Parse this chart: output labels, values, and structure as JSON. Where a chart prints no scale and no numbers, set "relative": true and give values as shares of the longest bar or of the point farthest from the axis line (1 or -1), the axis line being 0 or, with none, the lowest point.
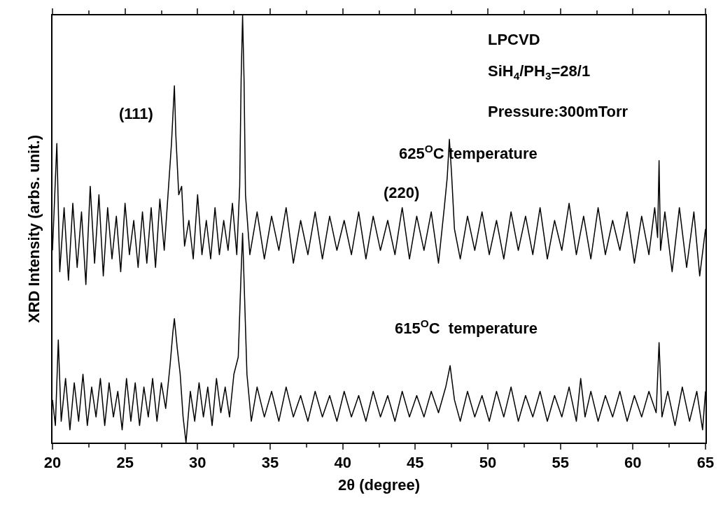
{
  "chart_data": {
    "type": "line",
    "relative": true,
    "xlabel": "2θ (degree)",
    "ylabel": "XRD Intensity (arbs. unit.)",
    "xlim": [
      20,
      65
    ],
    "xticks": [
      20,
      25,
      30,
      35,
      40,
      45,
      50,
      55,
      60,
      65
    ],
    "tick_labels": "x",
    "legend": false,
    "marker": "none",
    "line_style": "solid",
    "annotations": [
      "(111)",
      "(220)",
      "LPCVD",
      "SiH$_{4}$/PH$_{3}$=28/1",
      "Pressure:300mTorr"
    ],
    "series": [
      {
        "name": "625$^{O}$C temperature",
        "color": "#000000",
        "x": [
          20.0,
          20.3,
          20.5,
          20.8,
          21.1,
          21.4,
          21.7,
          22.0,
          22.3,
          22.6,
          22.9,
          23.2,
          23.5,
          23.8,
          24.1,
          24.4,
          24.7,
          25.0,
          25.3,
          25.6,
          25.9,
          26.2,
          26.5,
          26.8,
          27.1,
          27.4,
          27.7,
          28.0,
          28.2,
          28.4,
          28.5,
          28.7,
          28.9,
          29.1,
          29.4,
          29.7,
          30.0,
          30.3,
          30.6,
          30.9,
          31.2,
          31.5,
          31.8,
          32.1,
          32.4,
          32.7,
          32.9,
          33.0,
          33.1,
          33.2,
          33.3,
          33.6,
          34.1,
          34.6,
          35.1,
          35.6,
          36.1,
          36.6,
          37.1,
          37.6,
          38.1,
          38.6,
          39.1,
          39.6,
          40.1,
          40.6,
          41.1,
          41.6,
          42.1,
          42.6,
          43.1,
          43.6,
          44.1,
          44.6,
          45.1,
          45.6,
          46.1,
          46.6,
          47.0,
          47.2,
          47.35,
          47.5,
          47.7,
          48.1,
          48.6,
          49.1,
          49.6,
          50.1,
          50.6,
          51.1,
          51.6,
          52.1,
          52.6,
          53.1,
          53.6,
          54.1,
          54.6,
          55.1,
          55.6,
          56.1,
          56.6,
          57.1,
          57.6,
          58.1,
          58.6,
          59.1,
          59.6,
          60.1,
          60.6,
          61.1,
          61.5,
          61.7,
          61.8,
          61.9,
          62.2,
          62.7,
          63.2,
          63.7,
          64.2,
          64.6,
          65.0
        ],
        "values": [
          0.45,
          0.7,
          0.4,
          0.55,
          0.38,
          0.56,
          0.41,
          0.54,
          0.37,
          0.6,
          0.42,
          0.58,
          0.39,
          0.55,
          0.43,
          0.53,
          0.4,
          0.56,
          0.44,
          0.52,
          0.41,
          0.54,
          0.42,
          0.55,
          0.41,
          0.57,
          0.45,
          0.6,
          0.7,
          0.835,
          0.72,
          0.58,
          0.6,
          0.46,
          0.52,
          0.43,
          0.58,
          0.44,
          0.52,
          0.43,
          0.55,
          0.44,
          0.52,
          0.45,
          0.56,
          0.44,
          0.6,
          0.85,
          1.0,
          0.85,
          0.58,
          0.44,
          0.54,
          0.43,
          0.53,
          0.45,
          0.55,
          0.42,
          0.52,
          0.44,
          0.54,
          0.43,
          0.53,
          0.45,
          0.52,
          0.44,
          0.54,
          0.43,
          0.53,
          0.45,
          0.52,
          0.44,
          0.55,
          0.43,
          0.53,
          0.45,
          0.54,
          0.42,
          0.55,
          0.62,
          0.71,
          0.63,
          0.5,
          0.43,
          0.53,
          0.45,
          0.54,
          0.44,
          0.52,
          0.43,
          0.54,
          0.45,
          0.53,
          0.44,
          0.55,
          0.43,
          0.52,
          0.45,
          0.56,
          0.44,
          0.53,
          0.43,
          0.55,
          0.44,
          0.52,
          0.45,
          0.54,
          0.42,
          0.53,
          0.44,
          0.55,
          0.48,
          0.66,
          0.45,
          0.54,
          0.4,
          0.55,
          0.41,
          0.54,
          0.39,
          0.5
        ]
      },
      {
        "name": "615$^{O}$C  temperature",
        "color": "#000000",
        "x": [
          20.0,
          20.2,
          20.4,
          20.6,
          20.9,
          21.2,
          21.5,
          21.8,
          22.1,
          22.4,
          22.7,
          23.0,
          23.3,
          23.6,
          23.9,
          24.2,
          24.5,
          24.8,
          25.1,
          25.4,
          25.7,
          26.0,
          26.3,
          26.6,
          26.9,
          27.2,
          27.5,
          27.8,
          28.1,
          28.3,
          28.4,
          28.6,
          28.8,
          29.0,
          29.2,
          29.5,
          29.8,
          30.1,
          30.4,
          30.7,
          31.0,
          31.3,
          31.6,
          31.9,
          32.2,
          32.5,
          32.8,
          33.0,
          33.1,
          33.2,
          33.4,
          33.7,
          34.1,
          34.6,
          35.1,
          35.6,
          36.1,
          36.6,
          37.1,
          37.6,
          38.1,
          38.6,
          39.1,
          39.6,
          40.1,
          40.6,
          41.1,
          41.6,
          42.1,
          42.6,
          43.1,
          43.6,
          44.1,
          44.6,
          45.1,
          45.6,
          46.1,
          46.6,
          47.1,
          47.4,
          47.7,
          48.1,
          48.6,
          49.1,
          49.6,
          50.1,
          50.6,
          51.1,
          51.6,
          52.1,
          52.6,
          53.1,
          53.6,
          54.1,
          54.6,
          55.1,
          55.6,
          56.1,
          56.4,
          56.7,
          57.1,
          57.6,
          58.1,
          58.6,
          59.1,
          59.6,
          60.1,
          60.6,
          61.1,
          61.6,
          61.8,
          62.0,
          62.4,
          62.9,
          63.4,
          63.9,
          64.4,
          64.8,
          65.0
        ],
        "values": [
          0.1,
          0.04,
          0.24,
          0.05,
          0.15,
          0.03,
          0.14,
          0.05,
          0.16,
          0.04,
          0.13,
          0.06,
          0.15,
          0.04,
          0.14,
          0.06,
          0.12,
          0.03,
          0.15,
          0.05,
          0.14,
          0.04,
          0.13,
          0.06,
          0.15,
          0.05,
          0.14,
          0.08,
          0.18,
          0.26,
          0.29,
          0.22,
          0.16,
          0.06,
          0.0,
          0.12,
          0.05,
          0.14,
          0.06,
          0.13,
          0.04,
          0.15,
          0.07,
          0.13,
          0.06,
          0.16,
          0.2,
          0.4,
          0.49,
          0.38,
          0.16,
          0.05,
          0.13,
          0.06,
          0.12,
          0.05,
          0.13,
          0.06,
          0.11,
          0.05,
          0.12,
          0.06,
          0.11,
          0.05,
          0.12,
          0.06,
          0.11,
          0.05,
          0.12,
          0.06,
          0.11,
          0.05,
          0.12,
          0.06,
          0.11,
          0.06,
          0.12,
          0.07,
          0.13,
          0.18,
          0.1,
          0.05,
          0.12,
          0.06,
          0.11,
          0.05,
          0.12,
          0.06,
          0.13,
          0.05,
          0.11,
          0.06,
          0.12,
          0.05,
          0.11,
          0.06,
          0.13,
          0.05,
          0.15,
          0.06,
          0.12,
          0.05,
          0.11,
          0.06,
          0.12,
          0.05,
          0.11,
          0.06,
          0.12,
          0.07,
          0.234,
          0.06,
          0.12,
          0.04,
          0.13,
          0.05,
          0.12,
          0.03,
          0.12
        ]
      }
    ]
  }
}
